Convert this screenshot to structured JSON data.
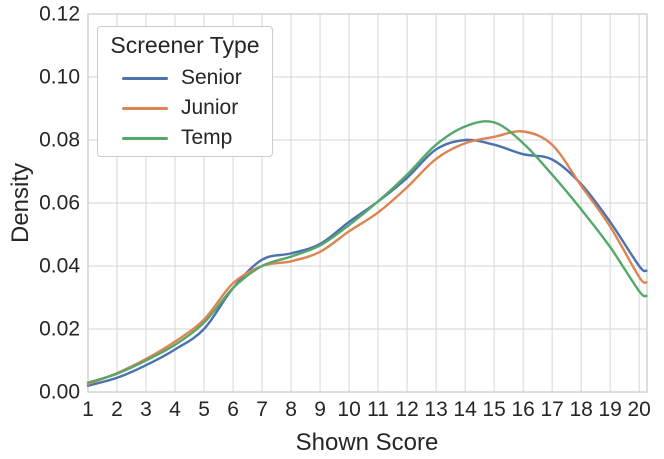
{
  "chart_data": {
    "type": "line",
    "title": "",
    "xlabel": "Shown Score",
    "ylabel": "Density",
    "xlim": [
      1,
      20.27
    ],
    "ylim": [
      0,
      0.12
    ],
    "grid": true,
    "x_tick_values": [
      1,
      2,
      3,
      4,
      5,
      6,
      7,
      8,
      9,
      10,
      11,
      12,
      13,
      14,
      15,
      16,
      17,
      18,
      19,
      20
    ],
    "x_tick_labels": [
      "1",
      "2",
      "3",
      "4",
      "5",
      "6",
      "7",
      "8",
      "9",
      "10",
      "11",
      "12",
      "13",
      "14",
      "15",
      "16",
      "17",
      "18",
      "19",
      "20"
    ],
    "y_tick_values": [
      0,
      0.02,
      0.04,
      0.06,
      0.08,
      0.1,
      0.12
    ],
    "y_tick_labels": [
      "0.00",
      "0.02",
      "0.04",
      "0.06",
      "0.08",
      "0.10",
      "0.12"
    ],
    "legend": {
      "title": "Screener Type",
      "position": "upper left"
    },
    "x": [
      1,
      2,
      3,
      4,
      5,
      6,
      7,
      8,
      9,
      10,
      11,
      12,
      13,
      14,
      15,
      16,
      17,
      18,
      19,
      20,
      20.25
    ],
    "series": [
      {
        "name": "Senior",
        "color": "#4c72b0",
        "values": [
          0.002,
          0.0045,
          0.0085,
          0.0135,
          0.02,
          0.033,
          0.042,
          0.044,
          0.047,
          0.054,
          0.0605,
          0.068,
          0.077,
          0.08,
          0.0785,
          0.0755,
          0.0738,
          0.066,
          0.054,
          0.04,
          0.0385
        ]
      },
      {
        "name": "Junior",
        "color": "#dd8452",
        "values": [
          0.0025,
          0.006,
          0.0105,
          0.016,
          0.023,
          0.0345,
          0.04,
          0.0415,
          0.0445,
          0.051,
          0.057,
          0.065,
          0.074,
          0.079,
          0.081,
          0.0827,
          0.0785,
          0.0655,
          0.0525,
          0.0365,
          0.0348
        ]
      },
      {
        "name": "Temp",
        "color": "#55a868",
        "values": [
          0.003,
          0.0058,
          0.01,
          0.015,
          0.022,
          0.033,
          0.04,
          0.043,
          0.0465,
          0.053,
          0.0605,
          0.069,
          0.0785,
          0.0843,
          0.0856,
          0.079,
          0.069,
          0.058,
          0.046,
          0.032,
          0.0305
        ]
      }
    ],
    "style": {
      "grid_color": "#d6d6d6",
      "spine_color": "#cccccc",
      "text_color": "#262626",
      "background": "#ffffff",
      "line_width": 2.4
    }
  }
}
